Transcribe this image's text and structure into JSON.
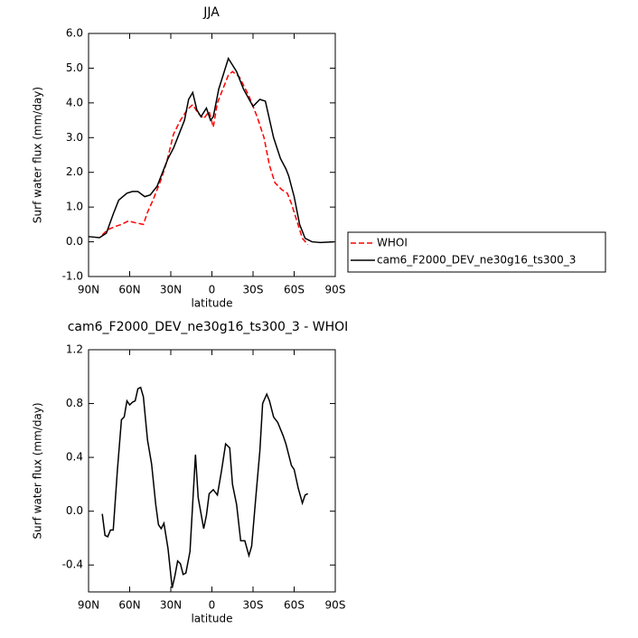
{
  "chart_data": [
    {
      "type": "line",
      "title": "JJA",
      "x_label": "latitude",
      "y_label": "Surf water flux (mm/day)",
      "xlim": [
        90,
        -90
      ],
      "xticks": [
        {
          "value": 90,
          "label": "90N"
        },
        {
          "value": 60,
          "label": "60N"
        },
        {
          "value": 30,
          "label": "30N"
        },
        0,
        {
          "value": -30,
          "label": "30S"
        },
        {
          "value": -60,
          "label": "60S"
        },
        {
          "value": -90,
          "label": "90S"
        }
      ],
      "ylim": [
        -1,
        6
      ],
      "yticks": [
        {
          "value": -1,
          "label": "-1.0"
        },
        {
          "value": 0,
          "label": "0.0"
        },
        {
          "value": 1,
          "label": "1.0"
        },
        {
          "value": 2,
          "label": "2.0"
        },
        {
          "value": 3,
          "label": "3.0"
        },
        {
          "value": 4,
          "label": "4.0"
        },
        {
          "value": 5,
          "label": "5.0"
        },
        {
          "value": 6,
          "label": "6.0"
        }
      ],
      "legend": "right",
      "series": [
        {
          "name": "WHOI",
          "color": "#ff0000",
          "linestyle": "dashed",
          "x": [
            80,
            76,
            70,
            66,
            61,
            56,
            50,
            47,
            43,
            37,
            33,
            28,
            23,
            18,
            14,
            10,
            6,
            2,
            -1,
            -4,
            -8,
            -12,
            -15,
            -20,
            -27,
            -33,
            -38,
            -42,
            -46,
            -51,
            -55,
            -58,
            -62,
            -66,
            -70
          ],
          "values": [
            0.2,
            0.35,
            0.45,
            0.5,
            0.6,
            0.55,
            0.5,
            0.85,
            1.2,
            1.8,
            2.3,
            3.1,
            3.5,
            3.8,
            3.95,
            3.7,
            3.55,
            3.75,
            3.3,
            4.0,
            4.4,
            4.8,
            4.9,
            4.75,
            4.2,
            3.6,
            3.0,
            2.2,
            1.7,
            1.5,
            1.4,
            1.1,
            0.6,
            0.1,
            -0.08
          ]
        },
        {
          "name": "cam6_F2000_DEV_ne30g16_ts300_3",
          "color": "#000000",
          "linestyle": "solid",
          "x": [
            90,
            82,
            77,
            72,
            68,
            62,
            58,
            54,
            49,
            45,
            40,
            36,
            32,
            28,
            24,
            20,
            17,
            14,
            11,
            8,
            4,
            1,
            -1,
            -5,
            -9,
            -12,
            -18,
            -23,
            -30,
            -35,
            -39,
            -41,
            -45,
            -50,
            -54,
            -56,
            -60,
            -64,
            -68,
            -73,
            -79,
            -89
          ],
          "values": [
            0.15,
            0.12,
            0.25,
            0.8,
            1.2,
            1.4,
            1.45,
            1.45,
            1.3,
            1.35,
            1.6,
            2.0,
            2.4,
            2.7,
            3.1,
            3.5,
            4.1,
            4.3,
            3.8,
            3.6,
            3.85,
            3.5,
            3.6,
            4.4,
            4.9,
            5.28,
            4.9,
            4.4,
            3.9,
            4.1,
            4.05,
            3.7,
            3.0,
            2.4,
            2.1,
            1.9,
            1.3,
            0.5,
            0.1,
            0.0,
            -0.02,
            0.0
          ]
        }
      ]
    },
    {
      "type": "line",
      "title": "cam6_F2000_DEV_ne30g16_ts300_3 - WHOI",
      "x_label": "latitude",
      "y_label": "Surf water flux (mm/day)",
      "xlim": [
        90,
        -90
      ],
      "xticks": [
        {
          "value": 90,
          "label": "90N"
        },
        {
          "value": 60,
          "label": "60N"
        },
        {
          "value": 30,
          "label": "30N"
        },
        0,
        {
          "value": -30,
          "label": "30S"
        },
        {
          "value": -60,
          "label": "60S"
        },
        {
          "value": -90,
          "label": "90S"
        }
      ],
      "ylim": [
        -0.6,
        1.2
      ],
      "yticks": [
        -0.4,
        {
          "value": 0,
          "label": "0.0"
        },
        0.4,
        0.8,
        1.2
      ],
      "series": [
        {
          "color": "#000000",
          "linestyle": "solid",
          "x": [
            80,
            78,
            76,
            74,
            72,
            69,
            66,
            64,
            62,
            60,
            58,
            56,
            54,
            52,
            50,
            47,
            44,
            41,
            39,
            37,
            35,
            32,
            29,
            27,
            25,
            23,
            21,
            19,
            16,
            12,
            10,
            6,
            4,
            2,
            -1,
            -4,
            -7,
            -10,
            -13,
            -15,
            -18,
            -21,
            -24,
            -27,
            -29,
            -32,
            -35,
            -37,
            -40,
            -42,
            -45,
            -48,
            -52,
            -54,
            -58,
            -60,
            -63,
            -66,
            -68,
            -70
          ],
          "values": [
            -0.02,
            -0.18,
            -0.19,
            -0.14,
            -0.14,
            0.3,
            0.68,
            0.7,
            0.82,
            0.79,
            0.81,
            0.82,
            0.91,
            0.92,
            0.85,
            0.53,
            0.35,
            0.05,
            -0.1,
            -0.13,
            -0.09,
            -0.28,
            -0.57,
            -0.48,
            -0.37,
            -0.39,
            -0.47,
            -0.46,
            -0.3,
            0.42,
            0.1,
            -0.13,
            -0.03,
            0.13,
            0.16,
            0.12,
            0.3,
            0.5,
            0.47,
            0.2,
            0.05,
            -0.22,
            -0.22,
            -0.33,
            -0.26,
            0.1,
            0.45,
            0.8,
            0.87,
            0.82,
            0.7,
            0.66,
            0.56,
            0.5,
            0.34,
            0.31,
            0.17,
            0.06,
            0.12,
            0.13
          ]
        }
      ]
    }
  ]
}
